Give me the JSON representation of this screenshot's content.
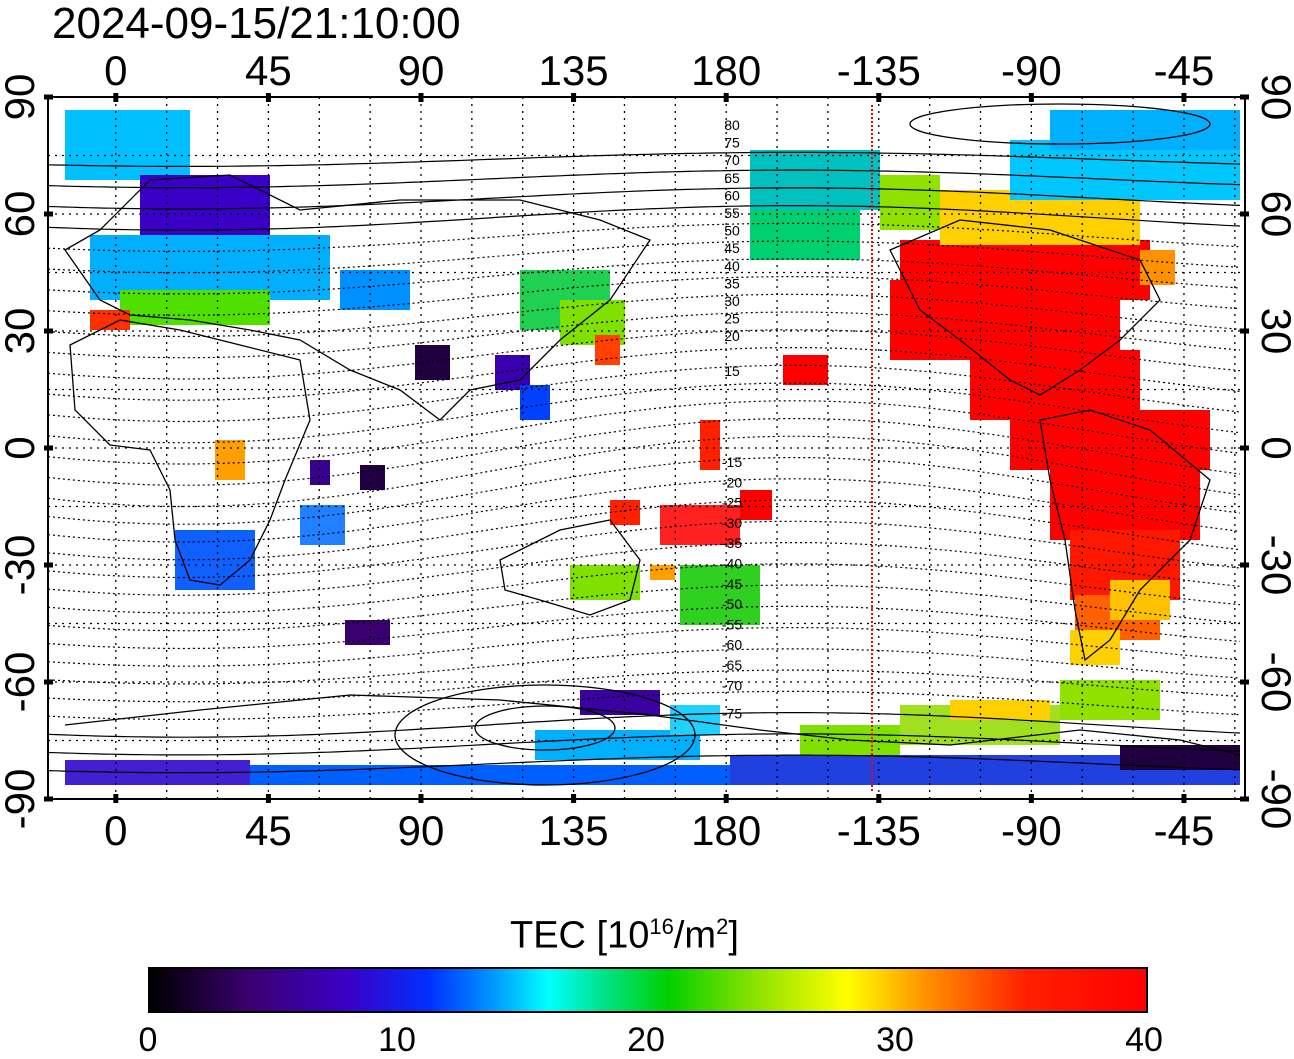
{
  "timestamp": "2024-09-15/21:10:00",
  "map": {
    "top_axis_labels": [
      "0",
      "45",
      "90",
      "135",
      "180",
      "-135",
      "-90",
      "-45"
    ],
    "bottom_axis_labels": [
      "0",
      "45",
      "90",
      "135",
      "180",
      "-135",
      "-90",
      "-45"
    ],
    "left_axis_labels": [
      "90",
      "60",
      "30",
      "0",
      "-30",
      "-60",
      "-90"
    ],
    "right_axis_labels": [
      "90",
      "60",
      "30",
      "0",
      "-30",
      "-60",
      "-90"
    ],
    "top_contour_labels": [
      "80",
      "75",
      "70",
      "65",
      "60",
      "55",
      "50",
      "45",
      "40",
      "35",
      "30",
      "25",
      "20",
      "15"
    ],
    "bottom_contour_labels": [
      "-15",
      "-20",
      "-25",
      "-30",
      "-35",
      "-40",
      "-45",
      "-50",
      "-55",
      "-60",
      "-65",
      "-70",
      "-75"
    ],
    "terminator_color": "#ff0000",
    "longitude_range": [
      -20,
      333
    ],
    "latitude_range": [
      -90,
      90
    ]
  },
  "colorbar": {
    "title_main": "TEC  [10",
    "title_exp": "16",
    "title_unit": "/m",
    "title_unit_exp": "2",
    "title_close": "]",
    "tick_labels": [
      "0",
      "10",
      "20",
      "30",
      "40"
    ],
    "range": [
      0,
      40
    ],
    "colors": [
      "#000000",
      "#3a00c8",
      "#0030ff",
      "#00ffff",
      "#00d000",
      "#ffff00",
      "#ff9000",
      "#ff0000"
    ]
  }
}
